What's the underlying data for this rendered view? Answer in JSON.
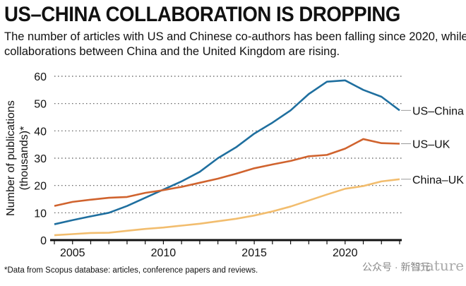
{
  "title": "US–CHINA COLLABORATION IS DROPPING",
  "subtitle": "The number of articles with US and Chinese co-authors has been falling since 2020, while collaborations between China and the United Kingdom are rising.",
  "footnote": "*Data from Scopus database: articles, conference papers and reviews.",
  "watermark": "公众号 · 新智元",
  "logo": "nature",
  "chart_data": {
    "type": "line",
    "ylabel": "Number of publications (thousands)*",
    "ylim": [
      0,
      60
    ],
    "yticks": [
      0,
      10,
      20,
      30,
      40,
      50,
      60
    ],
    "xlim": [
      2004,
      2023
    ],
    "xticks": [
      2005,
      2010,
      2015,
      2020
    ],
    "grid": "horizontal dotted",
    "x": [
      2004,
      2005,
      2006,
      2007,
      2008,
      2009,
      2010,
      2011,
      2012,
      2013,
      2014,
      2015,
      2016,
      2017,
      2018,
      2019,
      2020,
      2021,
      2022,
      2023
    ],
    "series": [
      {
        "name": "US–China",
        "color": "#1f6f9f",
        "values": [
          5.8,
          7.3,
          8.7,
          10,
          12.5,
          15.5,
          18.5,
          21.5,
          25,
          30,
          34,
          39,
          43,
          47.5,
          53.5,
          58,
          58.5,
          55,
          52.5,
          47.5
        ]
      },
      {
        "name": "US–UK",
        "color": "#d0632e",
        "values": [
          12.5,
          14,
          14.8,
          15.5,
          15.8,
          17.3,
          18.3,
          19.5,
          21,
          22.5,
          24.3,
          26.3,
          27.7,
          29,
          30.7,
          31.2,
          33.5,
          37,
          35.5,
          35.3
        ]
      },
      {
        "name": "China–UK",
        "color": "#f2bd6e",
        "values": [
          1.8,
          2.2,
          2.6,
          2.7,
          3.4,
          4.1,
          4.6,
          5.3,
          6,
          6.9,
          7.8,
          9,
          10.5,
          12.3,
          14.5,
          16.7,
          18.8,
          19.8,
          21.5,
          22.3
        ]
      }
    ]
  }
}
